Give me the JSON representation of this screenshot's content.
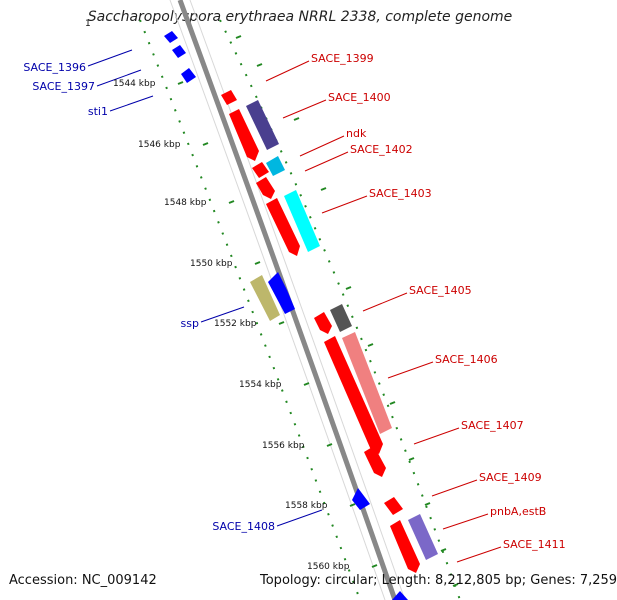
{
  "title": "Saccharopolyspora erythraea NRRL 2338, complete genome",
  "top_partial_label": "1",
  "accession": "Accession: NC_009142",
  "topology": "Topology: circular; Length: 8,212,805 bp; Genes: 7,259",
  "colors": {
    "forward_label": "#cc0000",
    "reverse_label": "#0000aa",
    "backbone": "#888888",
    "ticks": "#228822"
  },
  "ticks": [
    "1544 kbp",
    "1546 kbp",
    "1548 kbp",
    "1550 kbp",
    "1552 kbp",
    "1554 kbp",
    "1556 kbp",
    "1558 kbp",
    "1560 kbp"
  ],
  "forward_labels": [
    "SACE_1399",
    "SACE_1400",
    "ndk",
    "SACE_1402",
    "SACE_1403",
    "SACE_1405",
    "SACE_1406",
    "SACE_1407",
    "SACE_1409",
    "pnbA,estB",
    "SACE_1411"
  ],
  "reverse_labels": [
    "SACE_1396",
    "SACE_1397",
    "sti1",
    "ssp",
    "SACE_1408"
  ]
}
